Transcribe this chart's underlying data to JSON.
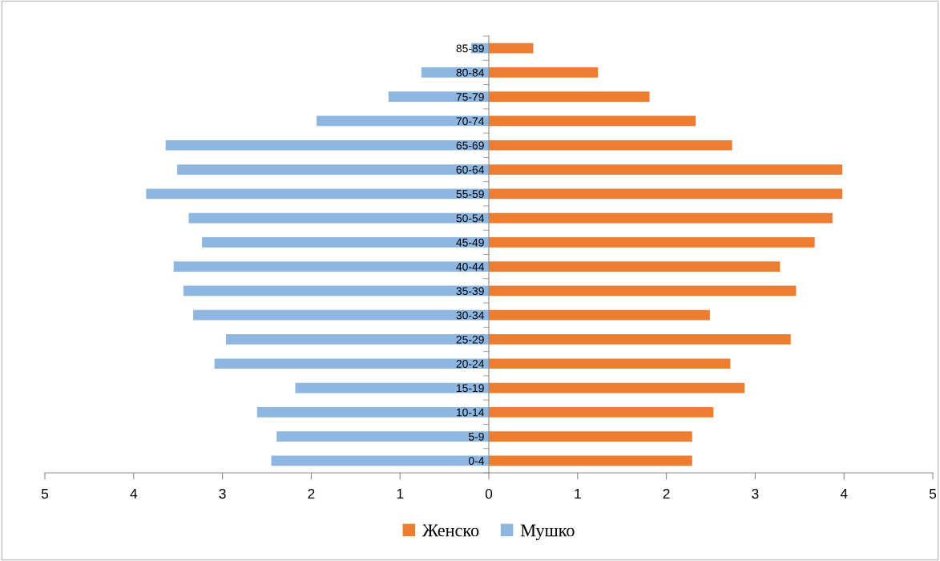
{
  "chart_data": {
    "type": "bar",
    "orientation": "horizontal",
    "stacked": true,
    "categories": [
      "85-89",
      "80-84",
      "75-79",
      "70-74",
      "65-69",
      "60-64",
      "55-59",
      "50-54",
      "45-49",
      "40-44",
      "35-39",
      "30-34",
      "25-29",
      "20-24",
      "15-19",
      "10-14",
      "5-9",
      "0-4"
    ],
    "series": [
      {
        "name": "Женско",
        "color": "#ed7d31",
        "values": [
          0.5,
          1.23,
          1.81,
          2.33,
          2.74,
          3.98,
          3.98,
          3.87,
          3.67,
          3.28,
          3.46,
          2.49,
          3.4,
          2.72,
          2.88,
          2.53,
          2.29,
          2.29
        ]
      },
      {
        "name": "Мушко",
        "color": "#8db7e1",
        "values": [
          -0.2,
          -0.76,
          -1.13,
          -1.94,
          -3.64,
          -3.51,
          -3.86,
          -3.38,
          -3.23,
          -3.55,
          -3.44,
          -3.33,
          -2.96,
          -3.09,
          -2.18,
          -2.61,
          -2.39,
          -2.45
        ]
      }
    ],
    "xlim": [
      -5,
      5
    ],
    "xticks": [
      {
        "value": -5,
        "label": "5"
      },
      {
        "value": -4,
        "label": "4"
      },
      {
        "value": -3,
        "label": "3"
      },
      {
        "value": -2,
        "label": "2"
      },
      {
        "value": -1,
        "label": "1"
      },
      0,
      1,
      2,
      3,
      4,
      5
    ],
    "grid": false,
    "legend": "bottom"
  }
}
